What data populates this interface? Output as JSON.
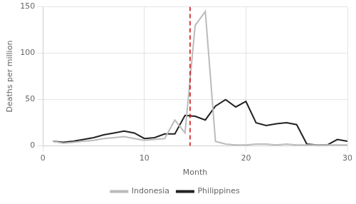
{
  "chart_data": {
    "type": "line",
    "x_label": "Month",
    "y_label": "Deaths per million",
    "x": [
      1,
      2,
      3,
      4,
      5,
      6,
      7,
      8,
      9,
      10,
      11,
      12,
      13,
      14,
      15,
      16,
      17,
      18,
      19,
      20,
      21,
      22,
      23,
      24,
      25,
      26,
      27,
      28,
      29,
      30
    ],
    "series": [
      {
        "name": "Indonesia",
        "color": "#bbbbbb",
        "values": [
          5,
          3,
          4,
          5,
          6,
          8,
          9,
          10,
          8,
          6,
          7,
          8,
          28,
          14,
          130,
          145,
          5,
          2,
          1,
          1,
          2,
          2,
          1,
          2,
          1,
          1,
          1,
          1,
          1,
          1
        ]
      },
      {
        "name": "Philippines",
        "color": "#222222",
        "values": [
          5,
          4,
          5,
          7,
          9,
          12,
          14,
          16,
          14,
          8,
          9,
          13,
          13,
          33,
          32,
          28,
          43,
          50,
          42,
          48,
          25,
          22,
          24,
          25,
          23,
          2,
          1,
          1,
          7,
          5
        ]
      }
    ],
    "annotations": [
      {
        "type": "vline",
        "x": 14.5,
        "color": "#cc0000",
        "line_style": "dashed"
      }
    ],
    "xlim": [
      0,
      30
    ],
    "ylim": [
      0,
      150
    ],
    "xticks": [
      0,
      10,
      20,
      30
    ],
    "yticks": [
      0,
      50,
      100,
      150
    ],
    "grid": true,
    "legend": "bottom"
  }
}
